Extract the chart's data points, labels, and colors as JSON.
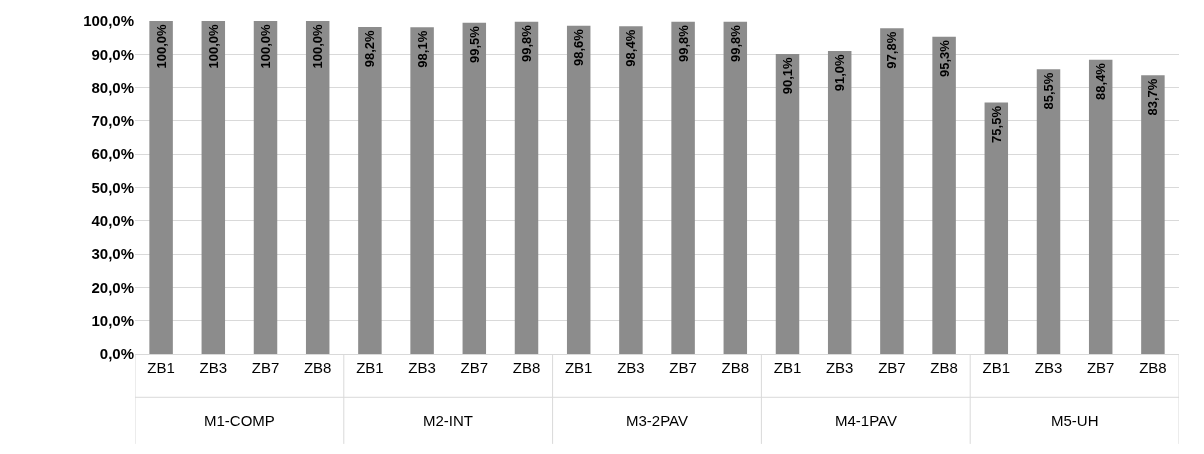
{
  "chart_data": {
    "type": "bar",
    "categories": [
      "ZB1",
      "ZB3",
      "ZB7",
      "ZB8",
      "ZB1",
      "ZB3",
      "ZB7",
      "ZB8",
      "ZB1",
      "ZB3",
      "ZB7",
      "ZB8",
      "ZB1",
      "ZB3",
      "ZB7",
      "ZB8",
      "ZB1",
      "ZB3",
      "ZB7",
      "ZB8"
    ],
    "values": [
      100.0,
      100.0,
      100.0,
      100.0,
      98.2,
      98.1,
      99.5,
      99.8,
      98.6,
      98.4,
      99.8,
      99.8,
      90.1,
      91.0,
      97.8,
      95.3,
      75.5,
      85.5,
      88.4,
      83.7
    ],
    "value_labels": [
      "100,0%",
      "100,0%",
      "100,0%",
      "100,0%",
      "98,2%",
      "98,1%",
      "99,5%",
      "99,8%",
      "98,6%",
      "98,4%",
      "99,8%",
      "99,8%",
      "90,1%",
      "91,0%",
      "97,8%",
      "95,3%",
      "75,5%",
      "85,5%",
      "88,4%",
      "83,7%"
    ],
    "color": "#8c8c8c",
    "ylim": [
      0,
      100
    ],
    "yticks": [
      {
        "value": 0,
        "label": "0,0%"
      },
      {
        "value": 10,
        "label": "10,0%"
      },
      {
        "value": 20,
        "label": "20,0%"
      },
      {
        "value": 30,
        "label": "30,0%"
      },
      {
        "value": 40,
        "label": "40,0%"
      },
      {
        "value": 50,
        "label": "50,0%"
      },
      {
        "value": 60,
        "label": "60,0%"
      },
      {
        "value": 70,
        "label": "70,0%"
      },
      {
        "value": 80,
        "label": "80,0%"
      },
      {
        "value": 90,
        "label": "90,0%"
      },
      {
        "value": 100,
        "label": "100,0%"
      }
    ],
    "grid": "y",
    "annotations": [
      "M1-COMP",
      "M2-INT",
      "M3-2PAV",
      "M4-1PAV",
      "M5-UH"
    ]
  }
}
